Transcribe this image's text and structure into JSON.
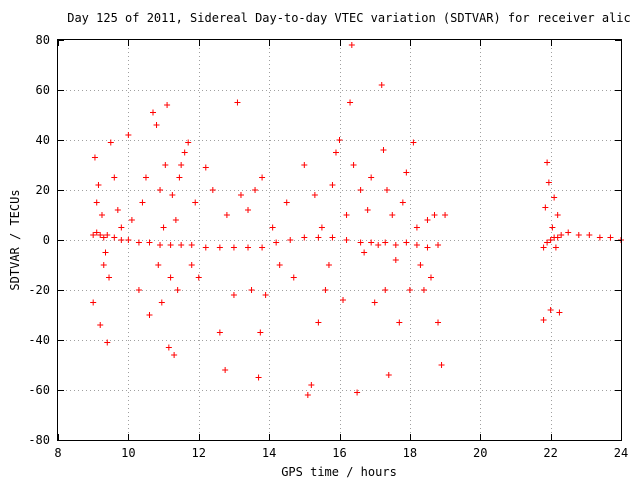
{
  "chart_data": {
    "type": "scatter",
    "title": "Day 125 of 2011, Sidereal Day-to-day VTEC variation (SDTVAR) for receiver alic",
    "xlabel": "GPS time / hours",
    "ylabel": "SDTVAR / TECUs",
    "xlim": [
      8,
      24
    ],
    "ylim": [
      -80,
      80
    ],
    "xticks": [
      8,
      10,
      12,
      14,
      16,
      18,
      20,
      22,
      24
    ],
    "yticks": [
      -80,
      -60,
      -40,
      -20,
      0,
      20,
      40,
      60,
      80
    ],
    "xtick_labels": [
      "8",
      "10",
      "12",
      "14",
      "16",
      "18",
      "20",
      "22",
      "24"
    ],
    "ytick_labels": [
      "-80",
      "-60",
      "-40",
      "-20",
      "0",
      "20",
      "40",
      "60",
      "80"
    ],
    "grid": true,
    "marker": "plus",
    "marker_color": "#ff0000",
    "series": [
      {
        "x": [
          9.0,
          9.1,
          9.2,
          9.3,
          9.4,
          9.6,
          9.8,
          10.0,
          10.3,
          10.6,
          10.9,
          11.2,
          11.5,
          11.8,
          12.2,
          12.6,
          13.0,
          13.4,
          13.8,
          14.2,
          14.6,
          15.0,
          15.4,
          15.8,
          16.2,
          16.6,
          16.9,
          17.1,
          17.3,
          17.6,
          17.9,
          18.2,
          18.5,
          18.8,
          21.8,
          21.9,
          22.0,
          22.1,
          22.2,
          22.3,
          22.5,
          22.8,
          23.1,
          23.4,
          23.7,
          24.0
        ],
        "y": [
          2,
          3,
          2,
          1,
          2,
          1,
          0,
          0,
          -1,
          -1,
          -2,
          -2,
          -2,
          -2,
          -3,
          -3,
          -3,
          -3,
          -3,
          -1,
          0,
          1,
          1,
          1,
          0,
          -1,
          -1,
          -2,
          -1,
          -2,
          -1,
          -2,
          -3,
          -2,
          -3,
          -1,
          0,
          1,
          1,
          2,
          3,
          2,
          2,
          1,
          1,
          0
        ]
      },
      {
        "x": [
          9.0,
          9.1,
          9.05,
          9.2,
          9.15,
          9.3,
          9.25,
          9.4,
          9.5,
          9.6,
          9.35,
          9.7,
          9.8,
          9.45,
          10.0,
          10.1,
          10.3,
          10.4,
          10.5,
          10.6,
          10.7,
          10.8,
          10.85,
          10.9,
          10.95,
          11.0,
          11.05,
          11.1,
          11.15,
          11.2,
          11.25,
          11.3,
          11.35,
          11.4,
          11.45,
          11.5,
          11.6,
          11.7,
          11.8,
          11.9,
          12.0,
          12.2,
          12.4,
          12.6,
          12.75,
          12.8,
          13.0,
          13.1,
          13.2,
          13.4,
          13.5,
          13.6,
          13.7,
          13.75,
          13.8,
          13.9,
          14.1,
          14.3,
          14.5,
          14.7,
          15.0,
          15.1,
          15.2,
          15.3,
          15.4,
          15.5,
          15.6,
          15.7,
          15.8,
          15.9,
          16.0,
          16.1,
          16.2,
          16.3,
          16.35,
          16.4,
          16.5,
          16.6,
          16.7,
          16.8,
          16.9,
          17.0,
          17.2,
          17.25,
          17.3,
          17.35,
          17.4,
          17.5,
          17.6,
          17.7,
          17.8,
          17.9,
          18.0,
          18.1,
          18.2,
          18.3,
          18.4,
          18.5,
          18.6,
          18.7,
          18.8,
          18.9,
          19.0,
          21.8,
          21.85,
          21.9,
          21.95,
          22.0,
          22.05,
          22.1,
          22.15,
          22.2,
          22.25
        ],
        "y": [
          -25,
          15,
          33,
          -34,
          22,
          -10,
          10,
          -41,
          39,
          25,
          -5,
          12,
          5,
          -15,
          42,
          8,
          -20,
          15,
          25,
          -30,
          51,
          46,
          -10,
          20,
          -25,
          5,
          30,
          54,
          -43,
          -15,
          18,
          -46,
          8,
          -20,
          25,
          30,
          35,
          39,
          -10,
          15,
          -15,
          29,
          20,
          -37,
          -52,
          10,
          -22,
          55,
          18,
          12,
          -20,
          20,
          -55,
          -37,
          25,
          -22,
          5,
          -10,
          15,
          -15,
          30,
          -62,
          -58,
          18,
          -33,
          5,
          -20,
          -10,
          22,
          35,
          40,
          -24,
          10,
          55,
          78,
          30,
          -61,
          20,
          -5,
          12,
          25,
          -25,
          62,
          36,
          -20,
          20,
          -54,
          10,
          -8,
          -33,
          15,
          27,
          -20,
          39,
          5,
          -10,
          -20,
          8,
          -15,
          10,
          -33,
          -50,
          10,
          -32,
          13,
          31,
          23,
          -28,
          5,
          17,
          -3,
          10,
          -29
        ]
      }
    ]
  }
}
